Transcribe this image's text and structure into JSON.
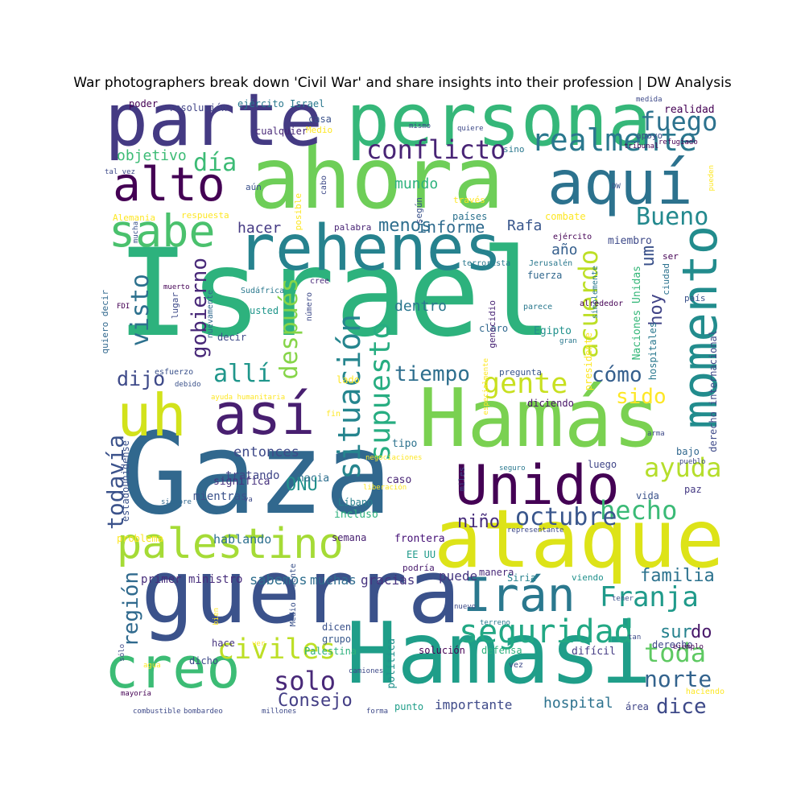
{
  "chart_data": {
    "type": "wordcloud",
    "title": "War photographers break down 'Civil War' and share insights into their profession | DW Analysis",
    "words": [
      {
        "text": "Israel",
        "color": "#2db27d"
      },
      {
        "text": "Gaza",
        "color": "#31688e"
      },
      {
        "text": "ahora",
        "color": "#6ece58"
      },
      {
        "text": "persona",
        "color": "#35b779"
      },
      {
        "text": "Hamás",
        "color": "#7ad151"
      },
      {
        "text": "rehenes",
        "color": "#26828e"
      },
      {
        "text": "guerra",
        "color": "#3b528b"
      },
      {
        "text": "ataque",
        "color": "#dde318"
      },
      {
        "text": "Hamasi",
        "color": "#1f9e89"
      },
      {
        "text": "parte",
        "color": "#443a83"
      },
      {
        "text": "aquí",
        "color": "#2c728e"
      },
      {
        "text": "uh",
        "color": "#d2e21b"
      },
      {
        "text": "así",
        "color": "#481f70"
      },
      {
        "text": "creo",
        "color": "#3cbc75"
      },
      {
        "text": "palestino",
        "color": "#a5db36"
      },
      {
        "text": "Unido",
        "color": "#440154"
      },
      {
        "text": "alto",
        "color": "#440154"
      },
      {
        "text": "sabe",
        "color": "#4ac16d"
      },
      {
        "text": "momento",
        "color": "#228c8d"
      },
      {
        "text": "Irán",
        "color": "#2a788e"
      },
      {
        "text": "realmente",
        "color": "#2a788e"
      },
      {
        "text": "situación",
        "color": "#25858e"
      },
      {
        "text": "supuesto",
        "color": "#27ad81"
      },
      {
        "text": "seguridad",
        "color": "#22a884"
      },
      {
        "text": "conflicto",
        "color": "#482475"
      },
      {
        "text": "Franja",
        "color": "#1f9a8a"
      },
      {
        "text": "ayuda",
        "color": "#b5de2b"
      },
      {
        "text": "civiles",
        "color": "#bddf26"
      },
      {
        "text": "gente",
        "color": "#c8e020"
      },
      {
        "text": "fuego",
        "color": "#2c728e"
      },
      {
        "text": "Bueno",
        "color": "#23898e"
      },
      {
        "text": "acuerdo",
        "color": "#bddf26"
      },
      {
        "text": "hecho",
        "color": "#3aba76"
      },
      {
        "text": "octubre",
        "color": "#39568c"
      },
      {
        "text": "toda",
        "color": "#5ec962"
      },
      {
        "text": "solo",
        "color": "#482878"
      },
      {
        "text": "norte",
        "color": "#33638d"
      },
      {
        "text": "dice",
        "color": "#3e4a89"
      },
      {
        "text": "todavía",
        "color": "#3b528b"
      },
      {
        "text": "región",
        "color": "#306a8e"
      },
      {
        "text": "después",
        "color": "#86d549"
      },
      {
        "text": "gobierno",
        "color": "#482878"
      },
      {
        "text": "visto",
        "color": "#2d718e"
      },
      {
        "text": "allí",
        "color": "#1f968b"
      },
      {
        "text": "tiempo",
        "color": "#2e6f8e"
      },
      {
        "text": "cómo",
        "color": "#355f8d"
      },
      {
        "text": "sido",
        "color": "#fde725"
      },
      {
        "text": "día",
        "color": "#3cbb75"
      },
      {
        "text": "dijo",
        "color": "#3e4a89"
      },
      {
        "text": "hoy",
        "color": "#414487"
      },
      {
        "text": "sur",
        "color": "#26828e"
      },
      {
        "text": "do",
        "color": "#48186a"
      },
      {
        "text": "um",
        "color": "#3b528b"
      },
      {
        "text": "familia",
        "color": "#2c728e"
      },
      {
        "text": "Consejo",
        "color": "#433e85"
      },
      {
        "text": "ONU",
        "color": "#21918c"
      },
      {
        "text": "niño",
        "color": "#472d7b"
      },
      {
        "text": "hospital",
        "color": "#2c728e"
      },
      {
        "text": "importante",
        "color": "#3e4a89"
      },
      {
        "text": "menos",
        "color": "#2e6e8e"
      },
      {
        "text": "informe",
        "color": "#2f6b8e"
      },
      {
        "text": "Rafa",
        "color": "#39568c"
      },
      {
        "text": "mundo",
        "color": "#2db27d"
      },
      {
        "text": "hacer",
        "color": "#443983"
      },
      {
        "text": "dentro",
        "color": "#2a768e"
      },
      {
        "text": "objetivo",
        "color": "#3cbb75"
      },
      {
        "text": "año",
        "color": "#355f8d"
      },
      {
        "text": "entonces",
        "color": "#3e4989"
      },
      {
        "text": "sabemos",
        "color": "#2e6e8e"
      },
      {
        "text": "puede",
        "color": "#453781"
      },
      {
        "text": "muchas",
        "color": "#2f6c8e"
      },
      {
        "text": "gracias",
        "color": "#46337f"
      },
      {
        "text": "hablando",
        "color": "#2d708e"
      },
      {
        "text": "primer ministro",
        "color": "#472d7b"
      },
      {
        "text": "tratando",
        "color": "#404688"
      },
      {
        "text": "mientras",
        "color": "#3b528b"
      },
      {
        "text": "significa",
        "color": "#46327e"
      },
      {
        "text": "hacia",
        "color": "#2e6f8e"
      },
      {
        "text": "caso",
        "color": "#482475"
      },
      {
        "text": "incluso",
        "color": "#2db27d"
      },
      {
        "text": "Líbano",
        "color": "#27808e"
      },
      {
        "text": "semana",
        "color": "#482071"
      },
      {
        "text": "frontera",
        "color": "#440f76"
      },
      {
        "text": "EE UU",
        "color": "#1f9a8a"
      },
      {
        "text": "podría",
        "color": "#481b6d"
      },
      {
        "text": "manera",
        "color": "#482878"
      },
      {
        "text": "Siria",
        "color": "#26828e"
      },
      {
        "text": "viendo",
        "color": "#21918c"
      },
      {
        "text": "dicen",
        "color": "#3b528b"
      },
      {
        "text": "grupo",
        "color": "#38598c"
      },
      {
        "text": "Palestina",
        "color": "#2db27d"
      },
      {
        "text": "hace",
        "color": "#46337f"
      },
      {
        "text": "dicho",
        "color": "#3e4a89"
      },
      {
        "text": "derecho",
        "color": "#3f4788"
      },
      {
        "text": "difícil",
        "color": "#443b84"
      },
      {
        "text": "solución",
        "color": "#440154"
      },
      {
        "text": "defensa",
        "color": "#2db27d"
      },
      {
        "text": "política",
        "color": "#21918c"
      },
      {
        "text": "punto",
        "color": "#1f9e89"
      },
      {
        "text": "área",
        "color": "#404688"
      },
      {
        "text": "tipo",
        "color": "#2c728e"
      },
      {
        "text": "lado",
        "color": "#fde725"
      },
      {
        "text": "decir",
        "color": "#3e4a89"
      },
      {
        "text": "usted",
        "color": "#1f968b"
      },
      {
        "text": "claro",
        "color": "#31688e"
      },
      {
        "text": "Egipto",
        "color": "#21918c"
      },
      {
        "text": "pregunta",
        "color": "#39568c"
      },
      {
        "text": "diciendo",
        "color": "#481467"
      },
      {
        "text": "luego",
        "color": "#404688"
      },
      {
        "text": "vida",
        "color": "#3b528b"
      },
      {
        "text": "paz",
        "color": "#443983"
      },
      {
        "text": "bajo",
        "color": "#31688e"
      },
      {
        "text": "presidente",
        "color": "#fde725"
      },
      {
        "text": "fuerza",
        "color": "#31688e"
      },
      {
        "text": "miembro",
        "color": "#3e4a89"
      },
      {
        "text": "ciudad",
        "color": "#2c728e"
      },
      {
        "text": "combate",
        "color": "#fde725"
      },
      {
        "text": "países",
        "color": "#2c728e"
      },
      {
        "text": "palabra",
        "color": "#482475"
      },
      {
        "text": "resolución",
        "color": "#414487"
      },
      {
        "text": "ejército Israel",
        "color": "#2a788e"
      },
      {
        "text": "poder",
        "color": "#440154"
      },
      {
        "text": "casa",
        "color": "#3b528b"
      },
      {
        "text": "Medio",
        "color": "#fde725"
      },
      {
        "text": "cualquier",
        "color": "#482878"
      },
      {
        "text": "sino",
        "color": "#2a788e"
      },
      {
        "text": "apoyo",
        "color": "#3e4a89"
      },
      {
        "text": "realidad",
        "color": "#440154"
      },
      {
        "text": "respuesta",
        "color": "#fde725"
      },
      {
        "text": "Alemania",
        "color": "#fde725"
      },
      {
        "text": "aún",
        "color": "#3b528b"
      },
      {
        "text": "según",
        "color": "#3b528b"
      },
      {
        "text": "través",
        "color": "#fde725"
      },
      {
        "text": "cree",
        "color": "#482878"
      },
      {
        "text": "Sudáfrica",
        "color": "#2a788e"
      },
      {
        "text": "quiero decir",
        "color": "#31688e"
      },
      {
        "text": "lugar",
        "color": "#3e4a89"
      },
      {
        "text": "nuevamente",
        "color": "#31688e"
      },
      {
        "text": "número",
        "color": "#3e4a89"
      },
      {
        "text": "posible",
        "color": "#fde725"
      },
      {
        "text": "estadounidense",
        "color": "#3b528b"
      },
      {
        "text": "Naciones Unidas",
        "color": "#35b779"
      },
      {
        "text": "hospitales",
        "color": "#2a788e"
      },
      {
        "text": "derecho internacional",
        "color": "#3e4a89"
      },
      {
        "text": "genocidio",
        "color": "#482475"
      },
      {
        "text": "simplemente",
        "color": "#2a788e"
      },
      {
        "text": "ejército",
        "color": "#440154"
      },
      {
        "text": "terrorista",
        "color": "#2a788e"
      },
      {
        "text": "Jerusalén",
        "color": "#2a788e"
      },
      {
        "text": "alrededor",
        "color": "#440154"
      },
      {
        "text": "parece",
        "color": "#2a788e"
      },
      {
        "text": "país",
        "color": "#3b528b"
      },
      {
        "text": "ser",
        "color": "#440154"
      },
      {
        "text": "medida",
        "color": "#3e4a89"
      },
      {
        "text": "mismo",
        "color": "#3e4a89"
      },
      {
        "text": "quiere",
        "color": "#3e4a89"
      },
      {
        "text": "tribunal",
        "color": "#440154"
      },
      {
        "text": "refugiado",
        "color": "#440154"
      },
      {
        "text": "pueden",
        "color": "#fde725"
      },
      {
        "text": "tal vez",
        "color": "#3e4a89"
      },
      {
        "text": "DW",
        "color": "#3b528b"
      },
      {
        "text": "cabo",
        "color": "#3e4a89"
      },
      {
        "text": "mucha",
        "color": "#3b528b"
      },
      {
        "text": "muerto",
        "color": "#440154"
      },
      {
        "text": "FDI",
        "color": "#440154"
      },
      {
        "text": "esfuerzo",
        "color": "#3b528b"
      },
      {
        "text": "debido",
        "color": "#3b528b"
      },
      {
        "text": "ayuda humanitaria",
        "color": "#fde725"
      },
      {
        "text": "fin",
        "color": "#fde725"
      },
      {
        "text": "especialmente",
        "color": "#fde725"
      },
      {
        "text": "gran",
        "color": "#2a788e"
      },
      {
        "text": "negociaciones",
        "color": "#fde725"
      },
      {
        "text": "miles",
        "color": "#3e4a89"
      },
      {
        "text": "seguro",
        "color": "#2a788e"
      },
      {
        "text": "liberación",
        "color": "#fde725"
      },
      {
        "text": "representante",
        "color": "#3e4a89"
      },
      {
        "text": "siempre",
        "color": "#31688e"
      },
      {
        "text": "va",
        "color": "#3e4a89"
      },
      {
        "text": "Medio Oriente",
        "color": "#3b528b"
      },
      {
        "text": "arma",
        "color": "#3e4a89"
      },
      {
        "text": "pueblo",
        "color": "#3e4a89"
      },
      {
        "text": "problema",
        "color": "#fde725"
      },
      {
        "text": "tener",
        "color": "#3b528b"
      },
      {
        "text": "nuevo",
        "color": "#3e4a89"
      },
      {
        "text": "bien",
        "color": "#fde725"
      },
      {
        "text": "ver",
        "color": "#fde725"
      },
      {
        "text": "sólo",
        "color": "#3e4a89"
      },
      {
        "text": "agua",
        "color": "#fde725"
      },
      {
        "text": "terreno",
        "color": "#2a788e"
      },
      {
        "text": "tan",
        "color": "#3e4a89"
      },
      {
        "text": "ejemplo",
        "color": "#440154"
      },
      {
        "text": "vez",
        "color": "#3e4a89"
      },
      {
        "text": "haciendo",
        "color": "#fde725"
      },
      {
        "text": "camiones",
        "color": "#3e4a89"
      },
      {
        "text": "mayoría",
        "color": "#440154"
      },
      {
        "text": "combustible",
        "color": "#3e4a89"
      },
      {
        "text": "bombardeo",
        "color": "#3e4a89"
      },
      {
        "text": "millones",
        "color": "#3e4a89"
      },
      {
        "text": "forma",
        "color": "#3e4a89"
      }
    ]
  }
}
